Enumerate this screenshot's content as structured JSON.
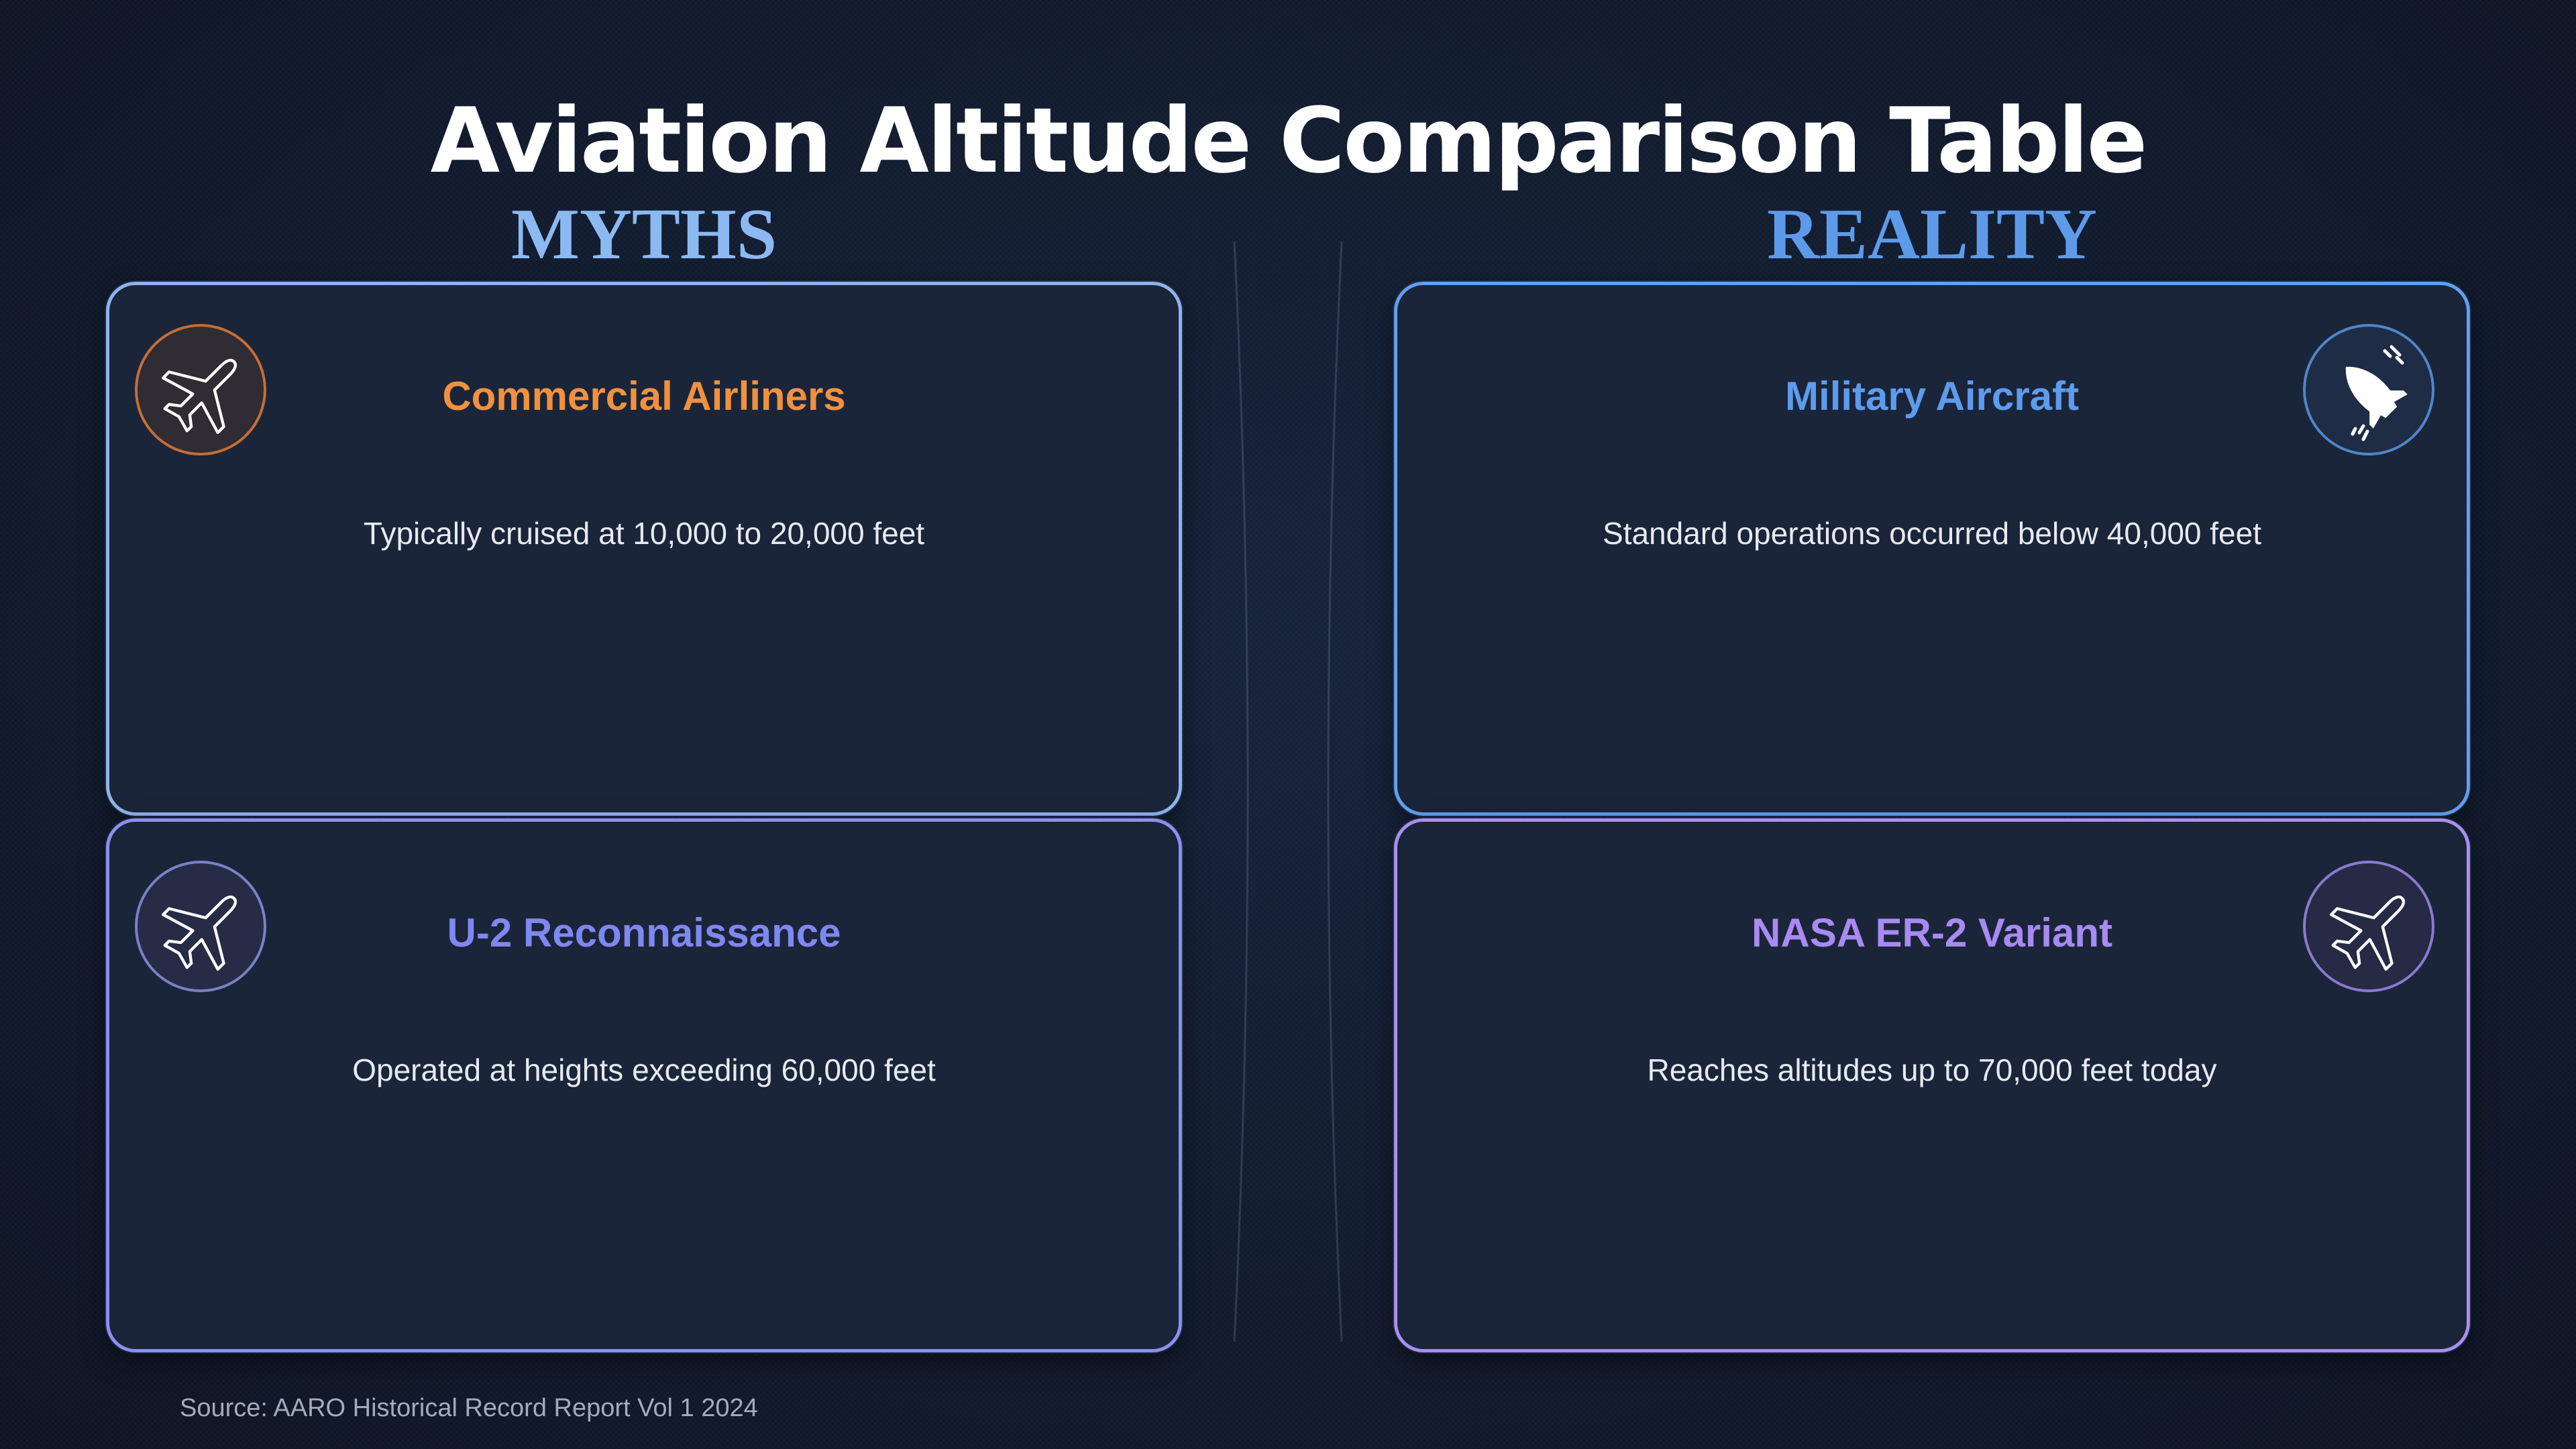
{
  "title": "Aviation Altitude Comparison Table",
  "columns": {
    "myths": "MYTHS",
    "reality": "REALITY"
  },
  "cards": [
    {
      "title": "Commercial Airliners",
      "text": "Typically cruised at 10,000 to 20,000 feet",
      "icon": "airplane-icon",
      "accent": "#f0913f"
    },
    {
      "title": "Military Aircraft",
      "text": "Standard operations occurred below 40,000 feet",
      "icon": "jet-icon",
      "accent": "#5d9bec"
    },
    {
      "title": "U-2 Reconnaissance",
      "text": "Operated at heights exceeding 60,000 feet",
      "icon": "airplane-icon",
      "accent": "#7f87f0"
    },
    {
      "title": "NASA ER-2 Variant",
      "text": "Reaches altitudes up to 70,000 feet today",
      "icon": "airplane-icon",
      "accent": "#a88af2"
    }
  ],
  "source": "Source: AARO Historical Record Report Vol 1 2024"
}
